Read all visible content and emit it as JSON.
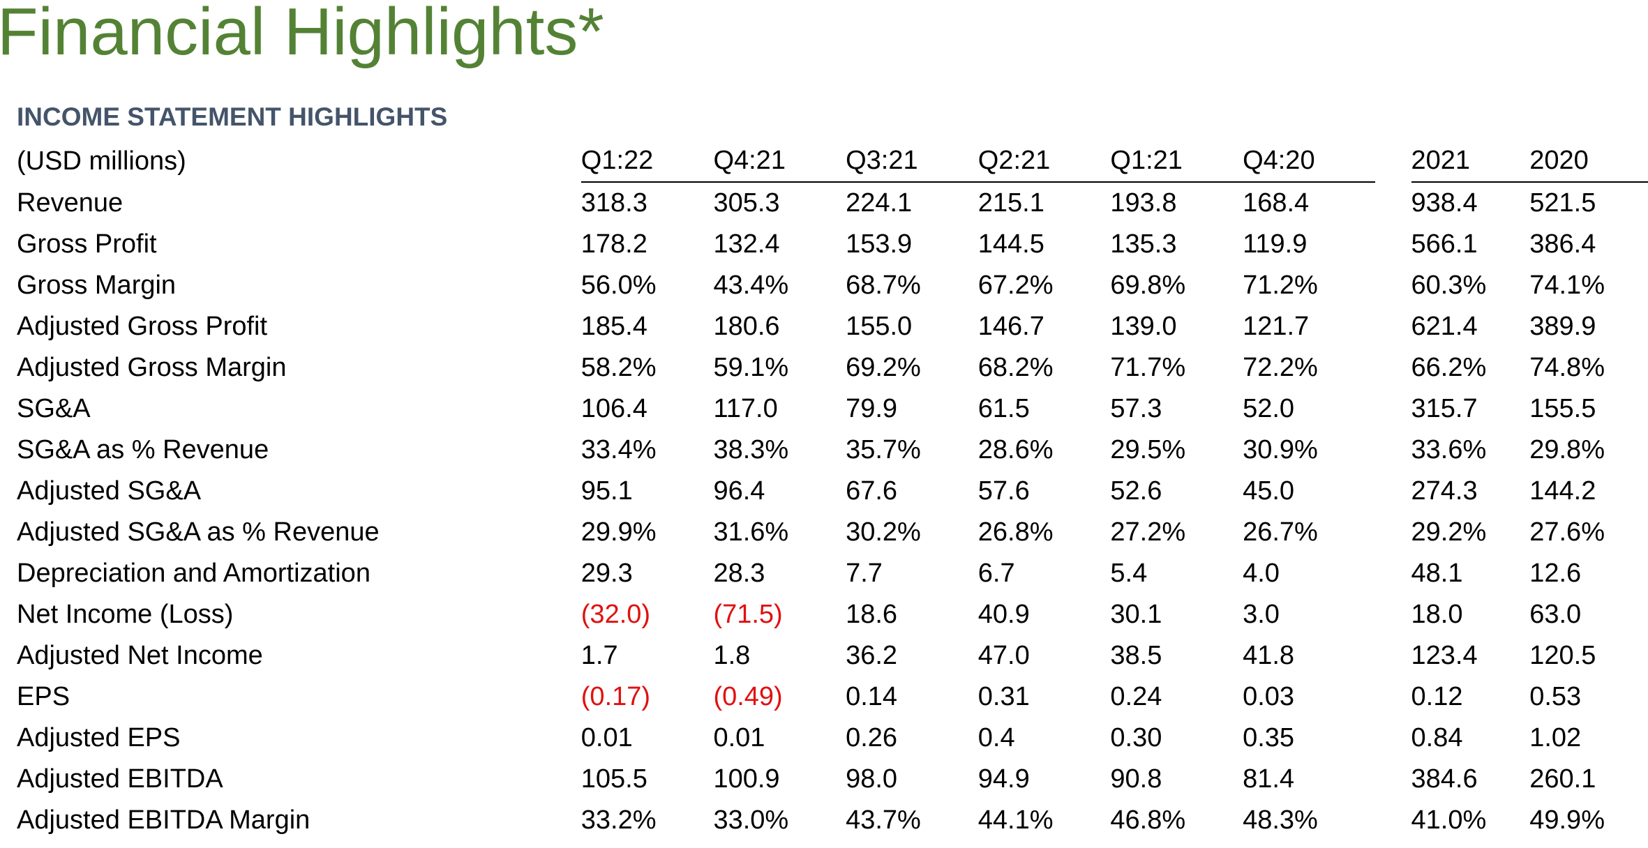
{
  "colors": {
    "title": "#548235",
    "section_heading": "#44546a",
    "negative": "#e01010",
    "text": "#000000"
  },
  "title": "Financial Highlights*",
  "section_heading": "INCOME STATEMENT HIGHLIGHTS",
  "table": {
    "unit_label": "(USD millions)",
    "quarter_columns": [
      "Q1:22",
      "Q4:21",
      "Q3:21",
      "Q2:21",
      "Q1:21",
      "Q4:20"
    ],
    "year_columns": [
      "2021",
      "2020"
    ],
    "rows": [
      {
        "label": "Revenue",
        "quarters": [
          "318.3",
          "305.3",
          "224.1",
          "215.1",
          "193.8",
          "168.4"
        ],
        "years": [
          "938.4",
          "521.5"
        ]
      },
      {
        "label": "Gross Profit",
        "quarters": [
          "178.2",
          "132.4",
          "153.9",
          "144.5",
          "135.3",
          "119.9"
        ],
        "years": [
          "566.1",
          "386.4"
        ]
      },
      {
        "label": "Gross Margin",
        "quarters": [
          "56.0%",
          "43.4%",
          "68.7%",
          "67.2%",
          "69.8%",
          "71.2%"
        ],
        "years": [
          "60.3%",
          "74.1%"
        ]
      },
      {
        "label": "Adjusted Gross Profit",
        "quarters": [
          "185.4",
          "180.6",
          "155.0",
          "146.7",
          "139.0",
          "121.7"
        ],
        "years": [
          "621.4",
          "389.9"
        ]
      },
      {
        "label": "Adjusted Gross Margin",
        "quarters": [
          "58.2%",
          "59.1%",
          "69.2%",
          "68.2%",
          "71.7%",
          "72.2%"
        ],
        "years": [
          "66.2%",
          "74.8%"
        ]
      },
      {
        "label": "SG&A",
        "quarters": [
          "106.4",
          "117.0",
          "79.9",
          "61.5",
          "57.3",
          "52.0"
        ],
        "years": [
          "315.7",
          "155.5"
        ]
      },
      {
        "label": "SG&A as % Revenue",
        "quarters": [
          "33.4%",
          "38.3%",
          "35.7%",
          "28.6%",
          "29.5%",
          "30.9%"
        ],
        "years": [
          "33.6%",
          "29.8%"
        ]
      },
      {
        "label": "Adjusted SG&A",
        "quarters": [
          "95.1",
          "96.4",
          "67.6",
          "57.6",
          "52.6",
          "45.0"
        ],
        "years": [
          "274.3",
          "144.2"
        ]
      },
      {
        "label": "Adjusted SG&A as % Revenue",
        "quarters": [
          "29.9%",
          "31.6%",
          "30.2%",
          "26.8%",
          "27.2%",
          "26.7%"
        ],
        "years": [
          "29.2%",
          "27.6%"
        ]
      },
      {
        "label": "Depreciation and Amortization",
        "quarters": [
          "29.3",
          "28.3",
          "7.7",
          "6.7",
          "5.4",
          "4.0"
        ],
        "years": [
          "48.1",
          "12.6"
        ]
      },
      {
        "label": "Net Income (Loss)",
        "quarters": [
          "(32.0)",
          "(71.5)",
          "18.6",
          "40.9",
          "30.1",
          "3.0"
        ],
        "years": [
          "18.0",
          "63.0"
        ]
      },
      {
        "label": "Adjusted Net Income",
        "quarters": [
          "1.7",
          "1.8",
          "36.2",
          "47.0",
          "38.5",
          "41.8"
        ],
        "years": [
          "123.4",
          "120.5"
        ]
      },
      {
        "label": "EPS",
        "quarters": [
          "(0.17)",
          "(0.49)",
          "0.14",
          "0.31",
          "0.24",
          "0.03"
        ],
        "years": [
          "0.12",
          "0.53"
        ]
      },
      {
        "label": "Adjusted EPS",
        "quarters": [
          "0.01",
          "0.01",
          "0.26",
          "0.4",
          "0.30",
          "0.35"
        ],
        "years": [
          "0.84",
          "1.02"
        ]
      },
      {
        "label": "Adjusted EBITDA",
        "quarters": [
          "105.5",
          "100.9",
          "98.0",
          "94.9",
          "90.8",
          "81.4"
        ],
        "years": [
          "384.6",
          "260.1"
        ]
      },
      {
        "label": "Adjusted EBITDA Margin",
        "quarters": [
          "33.2%",
          "33.0%",
          "43.7%",
          "44.1%",
          "46.8%",
          "48.3%"
        ],
        "years": [
          "41.0%",
          "49.9%"
        ]
      }
    ]
  }
}
